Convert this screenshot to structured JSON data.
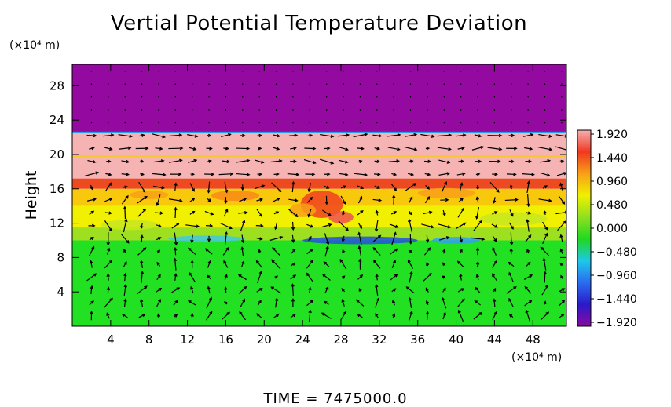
{
  "chart_data": {
    "type": "heatmap",
    "title": "Vertial Potential Temperature Deviation",
    "ylabel": "Height",
    "x_unit_label": "(×10⁴ m)",
    "y_unit_label": "(×10⁴ m)",
    "footer": "TIME  =  7475000.0",
    "xlim": [
      0,
      51.5
    ],
    "ylim": [
      0,
      30.5
    ],
    "x_ticks": [
      4,
      8,
      12,
      16,
      20,
      24,
      28,
      32,
      36,
      40,
      44,
      48
    ],
    "y_ticks": [
      4,
      8,
      12,
      16,
      20,
      24,
      28
    ],
    "colorbar": {
      "min": -1.92,
      "max": 1.92,
      "labels": [
        "1.920",
        "1.440",
        "0.960",
        "0.480",
        "0.000",
        "−0.480",
        "−0.960",
        "−1.440",
        "−1.920"
      ],
      "colors": [
        "#8a0aa0",
        "#2a1ac8",
        "#2a6cf0",
        "#1ec8e8",
        "#20d820",
        "#8ee020",
        "#f0f000",
        "#f8a018",
        "#f03820",
        "#f4b0b0"
      ]
    },
    "bands": [
      {
        "y0": 22.6,
        "y1": 30.5,
        "value": "min",
        "color": "#940aa0"
      },
      {
        "y0": 17.2,
        "y1": 22.6,
        "value": "max",
        "color": "#f6b3b3"
      },
      {
        "y0": 16.0,
        "y1": 17.2,
        "value": 1.5,
        "color": "#ee4a22"
      },
      {
        "y0": 14.0,
        "y1": 16.0,
        "value": 1.0,
        "color": "#f8c80c"
      },
      {
        "y0": 11.5,
        "y1": 14.0,
        "value": 0.8,
        "color": "#f0f000"
      },
      {
        "y0": 10.0,
        "y1": 11.5,
        "value": 0.25,
        "color": "#9ee020"
      },
      {
        "y0": 0,
        "y1": 10.0,
        "value": 0.0,
        "color": "#22e022"
      }
    ]
  }
}
